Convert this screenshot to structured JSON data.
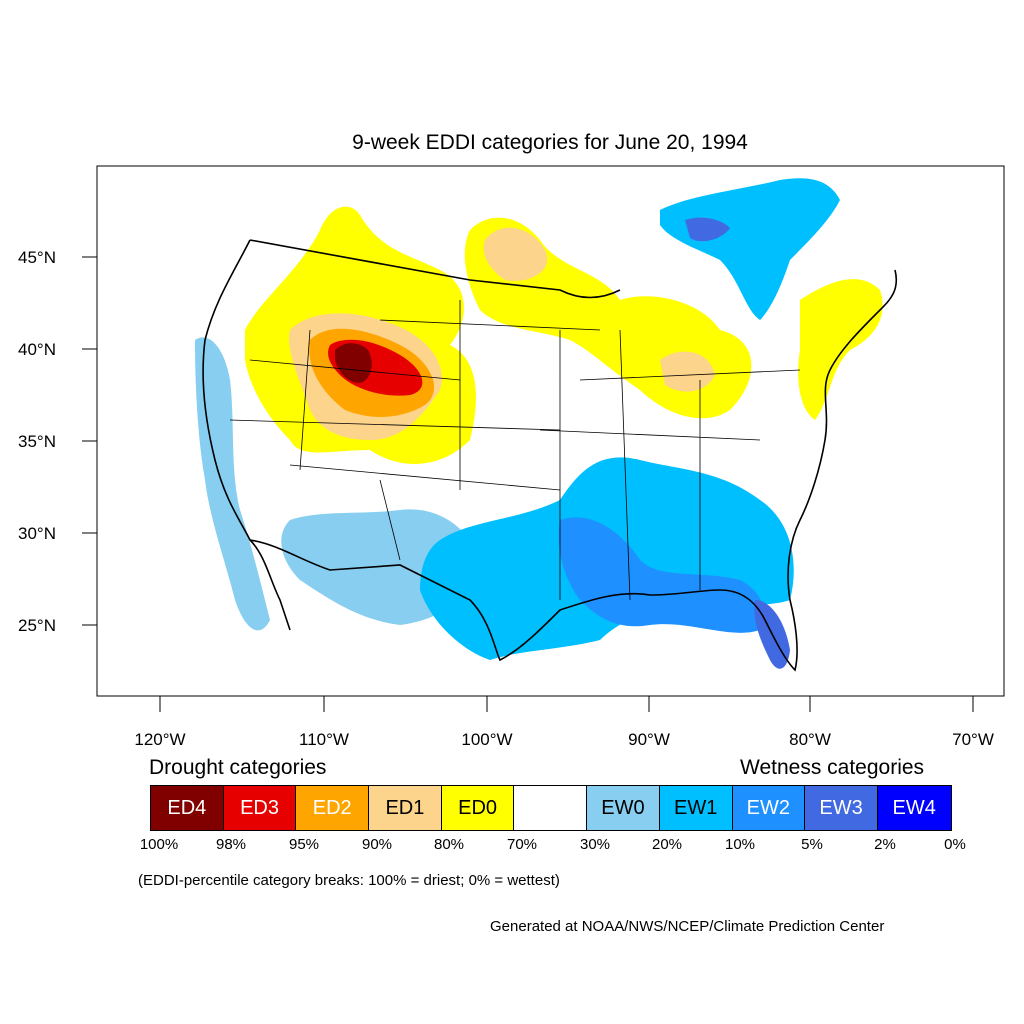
{
  "title": "9-week EDDI categories for June 20, 1994",
  "lat_labels": [
    "45°N",
    "40°N",
    "35°N",
    "30°N",
    "25°N"
  ],
  "lon_labels": [
    "120°W",
    "110°W",
    "100°W",
    "90°W",
    "80°W",
    "70°W"
  ],
  "legend": {
    "drought_heading": "Drought categories",
    "wetness_heading": "Wetness categories",
    "categories": [
      {
        "label": "ED4",
        "color": "#800000",
        "text_color": "#ffffff"
      },
      {
        "label": "ED3",
        "color": "#e60000",
        "text_color": "#ffffff"
      },
      {
        "label": "ED2",
        "color": "#ffa500",
        "text_color": "#ffffff"
      },
      {
        "label": "ED1",
        "color": "#fcd48c",
        "text_color": "#000000"
      },
      {
        "label": "ED0",
        "color": "#ffff00",
        "text_color": "#000000"
      },
      {
        "label": "",
        "color": "#ffffff",
        "text_color": "#000000"
      },
      {
        "label": "EW0",
        "color": "#87cef0",
        "text_color": "#000000"
      },
      {
        "label": "EW1",
        "color": "#00bfff",
        "text_color": "#000000"
      },
      {
        "label": "EW2",
        "color": "#1e90ff",
        "text_color": "#ffffff"
      },
      {
        "label": "EW3",
        "color": "#4169e1",
        "text_color": "#ffffff"
      },
      {
        "label": "EW4",
        "color": "#0000ff",
        "text_color": "#ffffff"
      }
    ],
    "breaks": [
      "100%",
      "98%",
      "95%",
      "90%",
      "80%",
      "70%",
      "30%",
      "20%",
      "10%",
      "5%",
      "2%",
      "0%"
    ]
  },
  "note": "(EDDI-percentile category breaks: 100% = driest; 0% = wettest)",
  "credit": "Generated at NOAA/NWS/NCEP/Climate Prediction Center"
}
